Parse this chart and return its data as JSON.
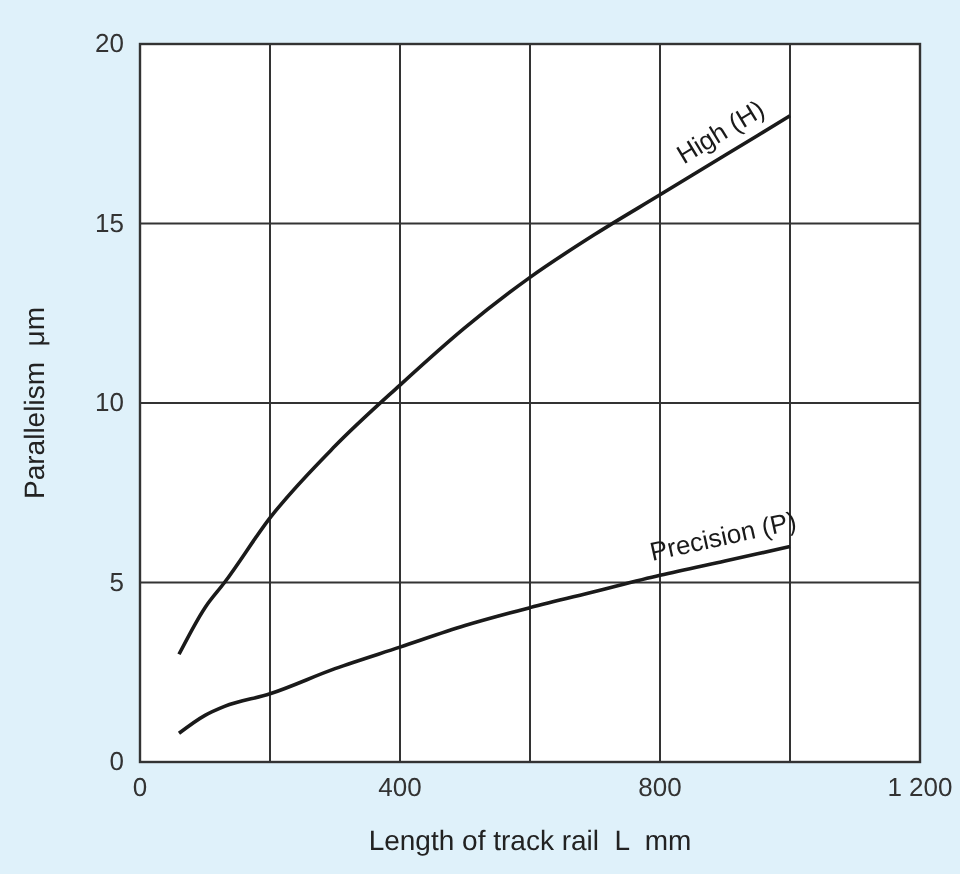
{
  "chart_data": {
    "type": "line",
    "xlabel": "Length of track rail  L  mm",
    "ylabel": "Parallelism  μm",
    "xlim": [
      0,
      1200
    ],
    "ylim": [
      0,
      20
    ],
    "xticks": [
      0,
      {
        "value": 200,
        "label": null
      },
      400,
      {
        "value": 600,
        "label": null
      },
      800,
      {
        "value": 1000,
        "label": null
      },
      {
        "value": 1200,
        "label": "1 200"
      }
    ],
    "yticks": [
      0,
      5,
      10,
      15,
      20
    ],
    "grid": true,
    "marker": "none",
    "line_style": "solid",
    "x": [
      60,
      100,
      130,
      200,
      300,
      400,
      500,
      600,
      700,
      800,
      900,
      1000
    ],
    "series": [
      {
        "name": "High (H)",
        "color": "#1a1a1a",
        "values": [
          3,
          4.3,
          5,
          6.8,
          8.8,
          10.5,
          12.1,
          13.5,
          14.7,
          15.8,
          16.9,
          18
        ]
      },
      {
        "name": "Precision (P)",
        "color": "#1a1a1a",
        "values": [
          0.8,
          1.3,
          1.55,
          1.9,
          2.6,
          3.2,
          3.8,
          4.3,
          4.75,
          5.2,
          5.6,
          6
        ]
      }
    ]
  }
}
